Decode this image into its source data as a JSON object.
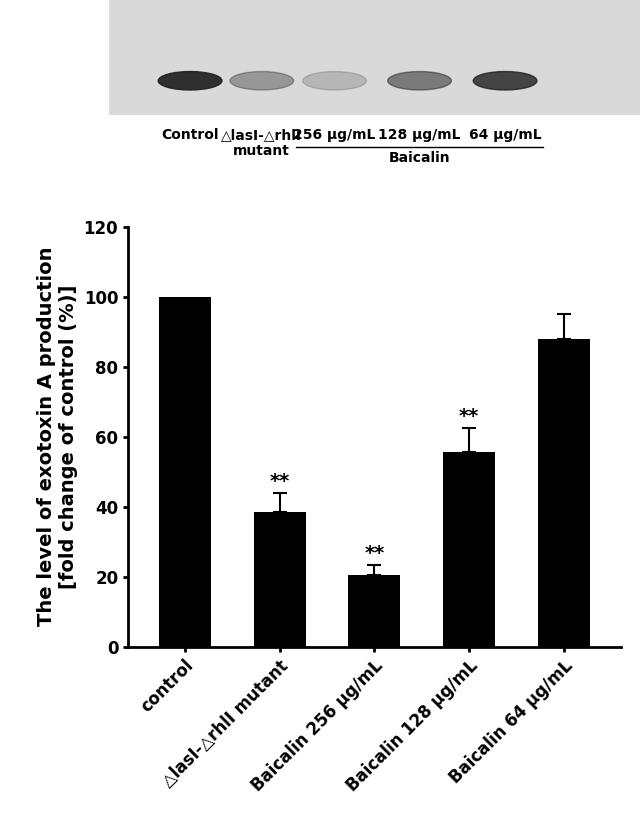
{
  "chart_data": {
    "type": "bar",
    "ylabel": "The level of exotoxin A production\n[fold change of control (%)]",
    "categories": [
      "control",
      "△lasI-△rhlI mutant",
      "Baicalin 256 μg/mL",
      "Baicalin 128 μg/mL",
      "Baicalin 64 μg/mL"
    ],
    "values": [
      100,
      38.5,
      20.5,
      55.5,
      88
    ],
    "errors": [
      null,
      5.5,
      3,
      7,
      7
    ],
    "significance": [
      null,
      "**",
      "**",
      "**",
      null
    ],
    "color": "#000000",
    "ylim": [
      0,
      120
    ],
    "yticks": [
      0,
      20,
      40,
      60,
      80,
      100,
      120
    ],
    "grid": false
  },
  "blot": {
    "lanes": [
      "Control",
      "△lasI-△rhlI\nmutant",
      "256 μg/mL",
      "128 μg/mL",
      "64 μg/mL"
    ],
    "group_label": "Baicalin"
  }
}
